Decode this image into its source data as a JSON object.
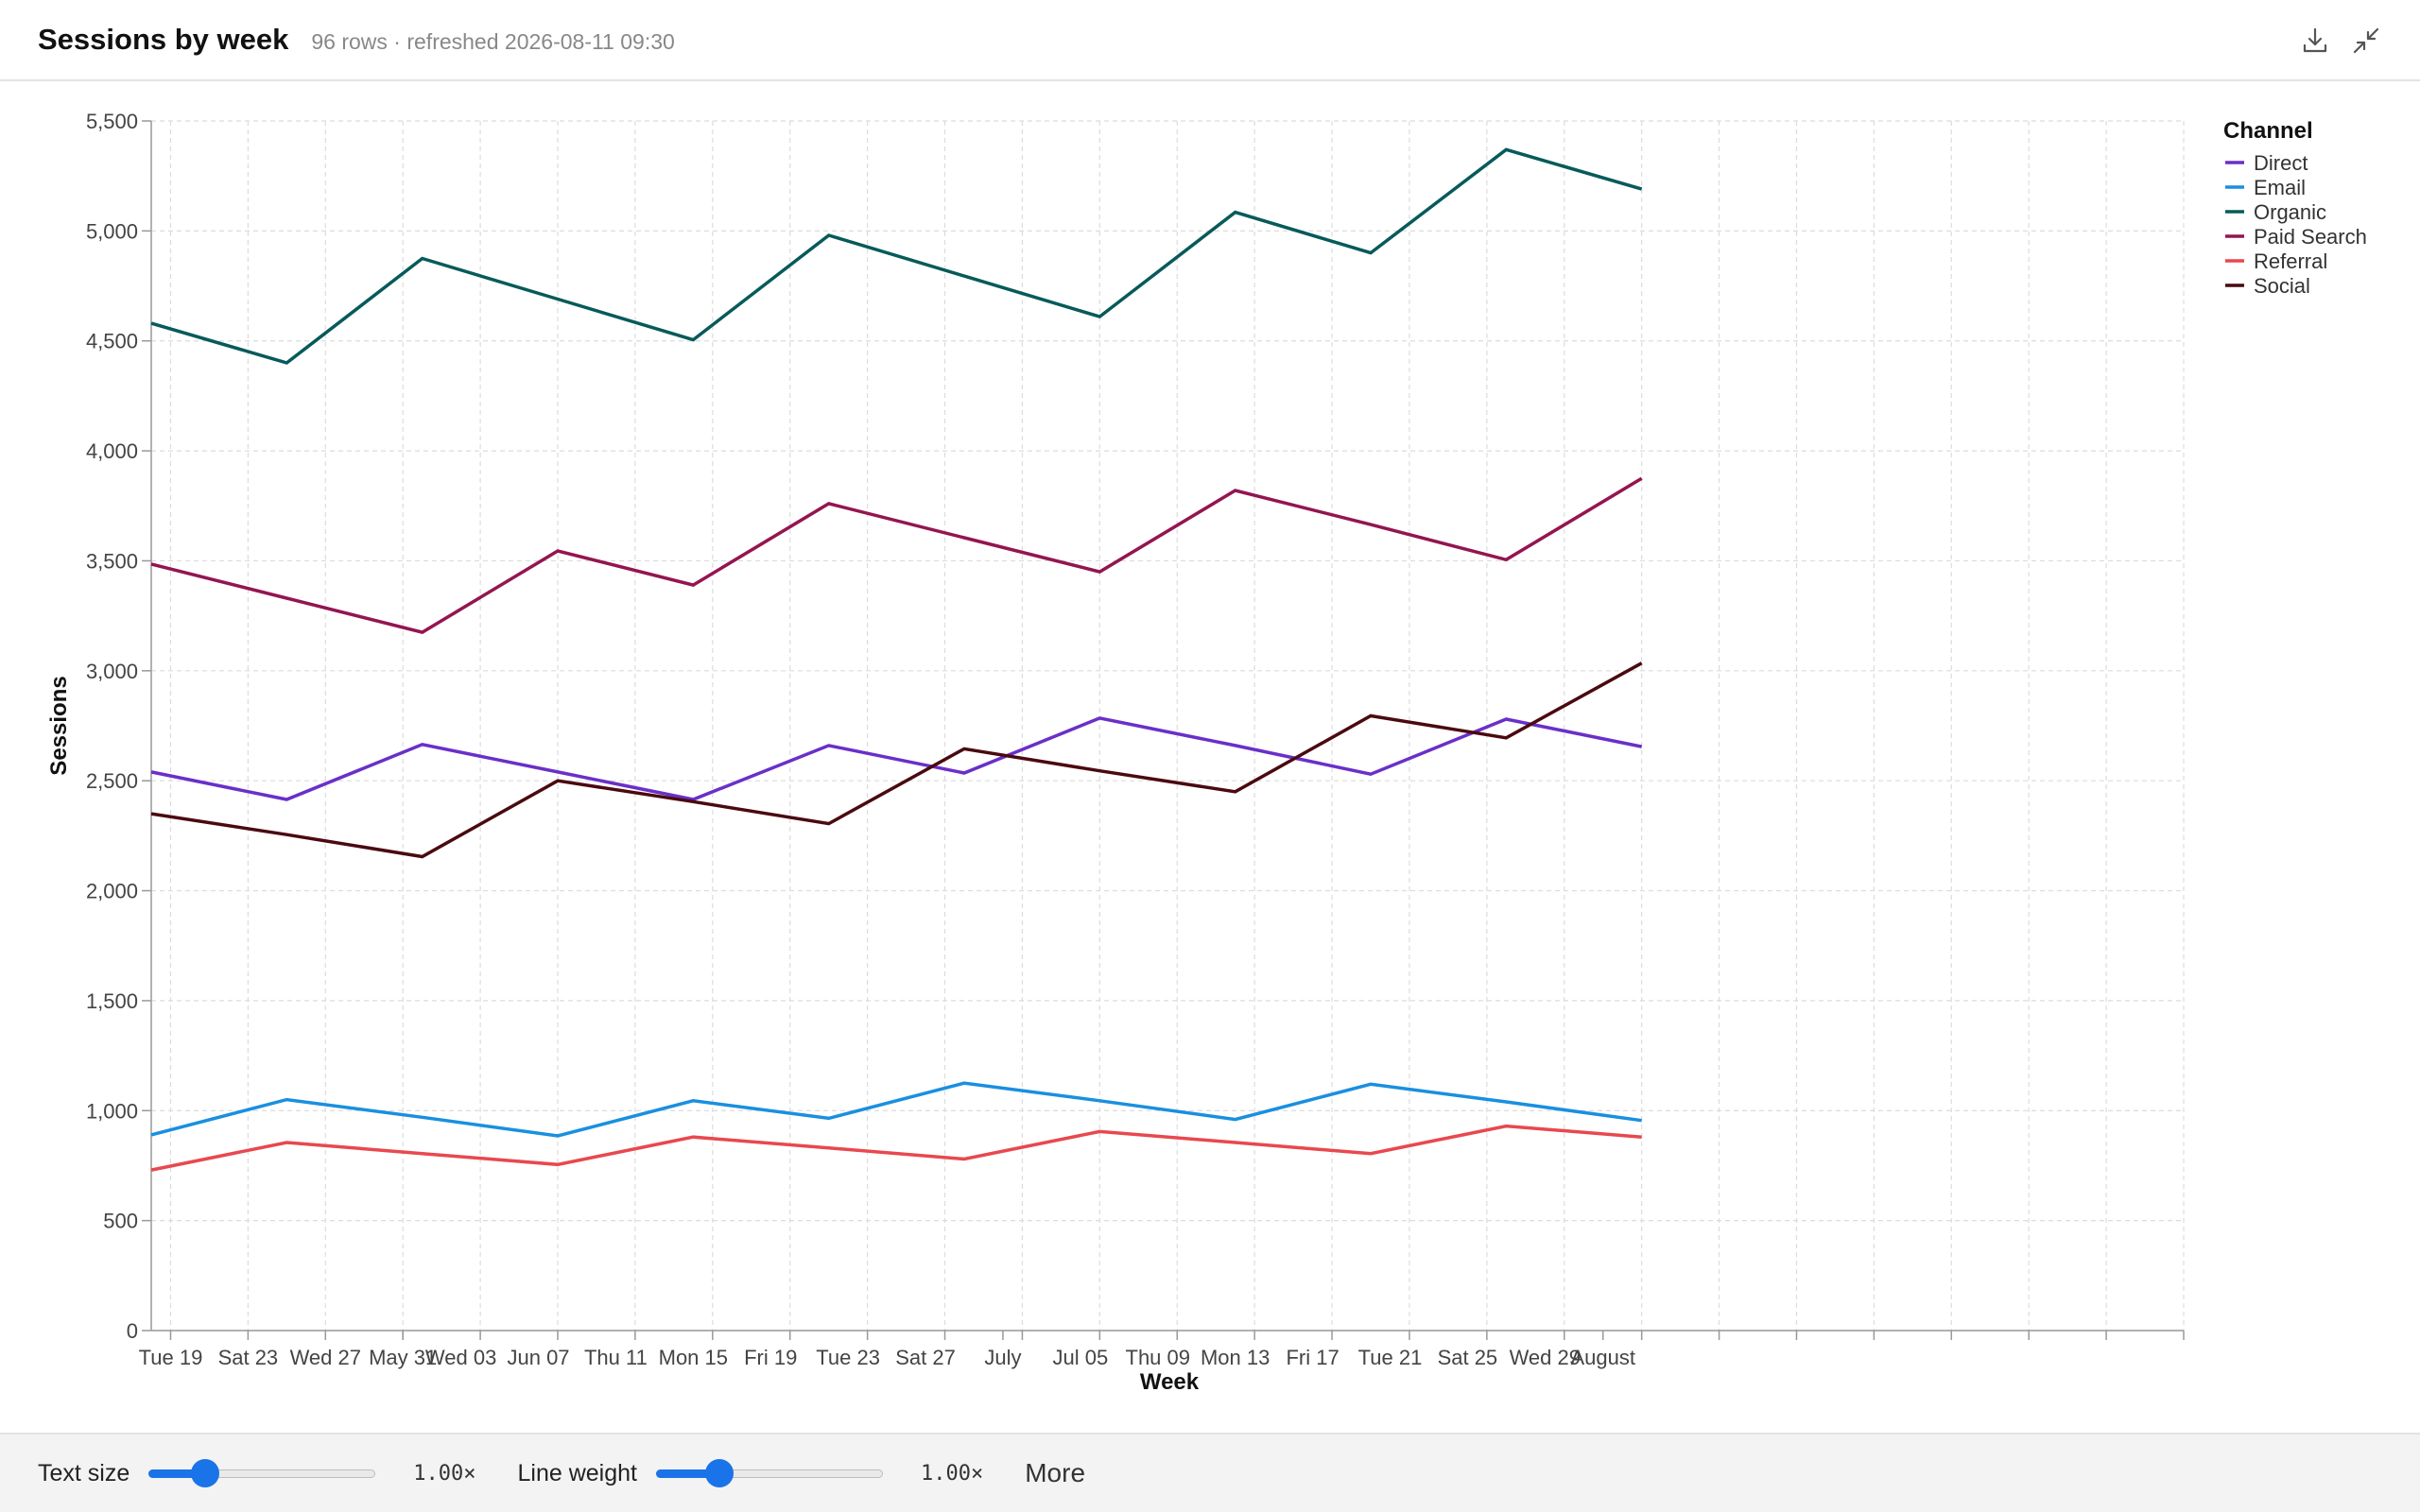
{
  "header": {
    "title": "Sessions by week",
    "subtitle": "96 rows · refreshed 2026-08-11 09:30",
    "download_icon": "download-icon",
    "collapse_icon": "collapse-icon"
  },
  "footer": {
    "text_size_label": "Text size",
    "text_size_value": "1.00×",
    "text_size_level": 0.25,
    "line_weight_label": "Line weight",
    "line_weight_value": "1.00×",
    "line_weight_level": 0.28,
    "more_label": "More"
  },
  "chart_data": {
    "type": "line",
    "xlabel": "Week",
    "ylabel": "Sessions",
    "ylim": [
      0,
      5500
    ],
    "yticks": [
      0,
      500,
      1000,
      1500,
      2000,
      2500,
      3000,
      3500,
      4000,
      4500,
      5000,
      5500
    ],
    "ytick_labels": [
      "0",
      "500",
      "1,000",
      "1,500",
      "2,000",
      "2,500",
      "3,000",
      "3,500",
      "4,000",
      "4,500",
      "5,000",
      "5,500"
    ],
    "xlim": [
      "2026-05-18",
      "2026-08-31"
    ],
    "x_tick_labels": [
      {
        "date": "2026-05-19",
        "label": "Tue 19"
      },
      {
        "date": "2026-05-23",
        "label": "Sat 23"
      },
      {
        "date": "2026-05-27",
        "label": "Wed 27"
      },
      {
        "date": "2026-05-31",
        "label": "May 31"
      },
      {
        "date": "2026-06-03",
        "label": "Wed 03"
      },
      {
        "date": "2026-06-07",
        "label": "Jun 07"
      },
      {
        "date": "2026-06-11",
        "label": "Thu 11"
      },
      {
        "date": "2026-06-15",
        "label": "Mon 15"
      },
      {
        "date": "2026-06-19",
        "label": "Fri 19"
      },
      {
        "date": "2026-06-23",
        "label": "Tue 23"
      },
      {
        "date": "2026-06-27",
        "label": "Sat 27"
      },
      {
        "date": "2026-07-01",
        "label": "July"
      },
      {
        "date": "2026-07-05",
        "label": "Jul 05"
      },
      {
        "date": "2026-07-09",
        "label": "Thu 09"
      },
      {
        "date": "2026-07-13",
        "label": "Mon 13"
      },
      {
        "date": "2026-07-17",
        "label": "Fri 17"
      },
      {
        "date": "2026-07-21",
        "label": "Tue 21"
      },
      {
        "date": "2026-07-25",
        "label": "Sat 25"
      },
      {
        "date": "2026-07-29",
        "label": "Wed 29"
      },
      {
        "date": "2026-08-01",
        "label": "August"
      }
    ],
    "grid": true,
    "legend": {
      "title": "Channel",
      "placement": "top-right"
    },
    "x": [
      "2026-05-18",
      "2026-05-25",
      "2026-06-01",
      "2026-06-08",
      "2026-06-15",
      "2026-06-22",
      "2026-06-29",
      "2026-07-06",
      "2026-07-13",
      "2026-07-20",
      "2026-07-27",
      "2026-08-03"
    ],
    "series": [
      {
        "name": "Direct",
        "color": "#6a2fc9",
        "values": [
          2540,
          2415,
          2665,
          2540,
          2415,
          2660,
          2535,
          2785,
          2660,
          2530,
          2780,
          2655
        ]
      },
      {
        "name": "Email",
        "color": "#1a8fe0",
        "values": [
          890,
          1050,
          970,
          885,
          1045,
          965,
          1125,
          1045,
          960,
          1120,
          1040,
          955
        ]
      },
      {
        "name": "Organic",
        "color": "#075a5a",
        "values": [
          4580,
          4400,
          4875,
          4690,
          4505,
          4980,
          4795,
          4610,
          5085,
          4900,
          5370,
          5190
        ]
      },
      {
        "name": "Paid Search",
        "color": "#941550",
        "values": [
          3485,
          3330,
          3175,
          3545,
          3390,
          3760,
          3605,
          3450,
          3820,
          3665,
          3505,
          3875
        ]
      },
      {
        "name": "Referral",
        "color": "#e8484f",
        "values": [
          730,
          855,
          805,
          755,
          880,
          830,
          780,
          905,
          855,
          805,
          930,
          880
        ]
      },
      {
        "name": "Social",
        "color": "#4a0a0f",
        "values": [
          2350,
          2255,
          2155,
          2500,
          2405,
          2305,
          2645,
          2545,
          2450,
          2795,
          2695,
          3035
        ]
      }
    ]
  }
}
